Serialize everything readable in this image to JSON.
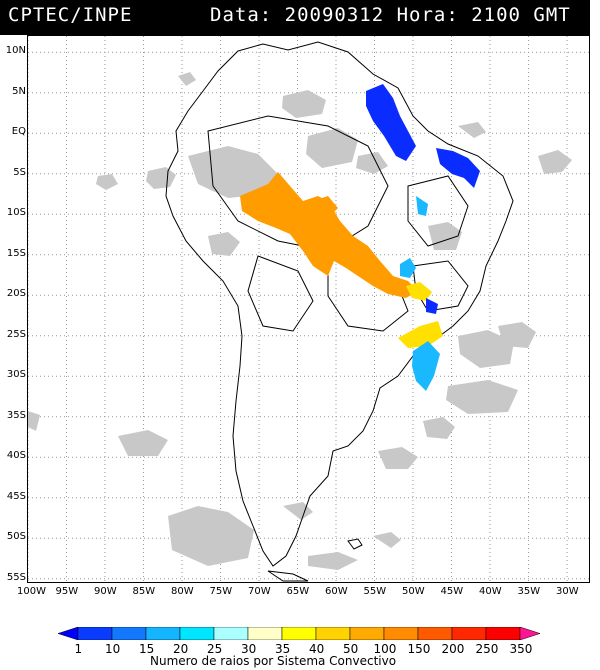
{
  "header": {
    "org": "CPTEC/INPE",
    "date_label": "Data: 20090312 Hora: 2100 GMT"
  },
  "map": {
    "lat_labels": [
      "10N",
      "5N",
      "EQ",
      "5S",
      "10S",
      "15S",
      "20S",
      "25S",
      "30S",
      "35S",
      "40S",
      "45S",
      "50S",
      "55S"
    ],
    "lat_values": [
      10,
      5,
      0,
      -5,
      -10,
      -15,
      -20,
      -25,
      -30,
      -35,
      -40,
      -45,
      -50,
      -55
    ],
    "lon_labels": [
      "100W",
      "95W",
      "90W",
      "85W",
      "80W",
      "75W",
      "70W",
      "65W",
      "60W",
      "55W",
      "50W",
      "45W",
      "40W",
      "35W",
      "30W"
    ],
    "lon_values": [
      -100,
      -95,
      -90,
      -85,
      -80,
      -75,
      -70,
      -65,
      -60,
      -55,
      -50,
      -45,
      -40,
      -35,
      -30
    ],
    "grid": "dotted",
    "cloud_color": "#c8c8c8",
    "land_outline_color": "#000000"
  },
  "legend": {
    "caption": "Numero de raios por Sistema Convectivo",
    "ticks": [
      "1",
      "10",
      "15",
      "20",
      "25",
      "30",
      "35",
      "40",
      "50",
      "100",
      "150",
      "200",
      "250",
      "350"
    ],
    "colors": [
      "#0000ff",
      "#0a3cff",
      "#1478ff",
      "#14b4ff",
      "#00e6ff",
      "#aaffff",
      "#ffffc8",
      "#ffff00",
      "#ffd200",
      "#ffaa00",
      "#ff8c00",
      "#ff5a00",
      "#ff2800",
      "#ff0000",
      "#ff1493"
    ]
  },
  "storm_colors": {
    "blue": "#0a2cff",
    "sky": "#19b8ff",
    "cyan": "#00e6ff",
    "yellow": "#ffe000",
    "orange": "#ff9c00"
  }
}
